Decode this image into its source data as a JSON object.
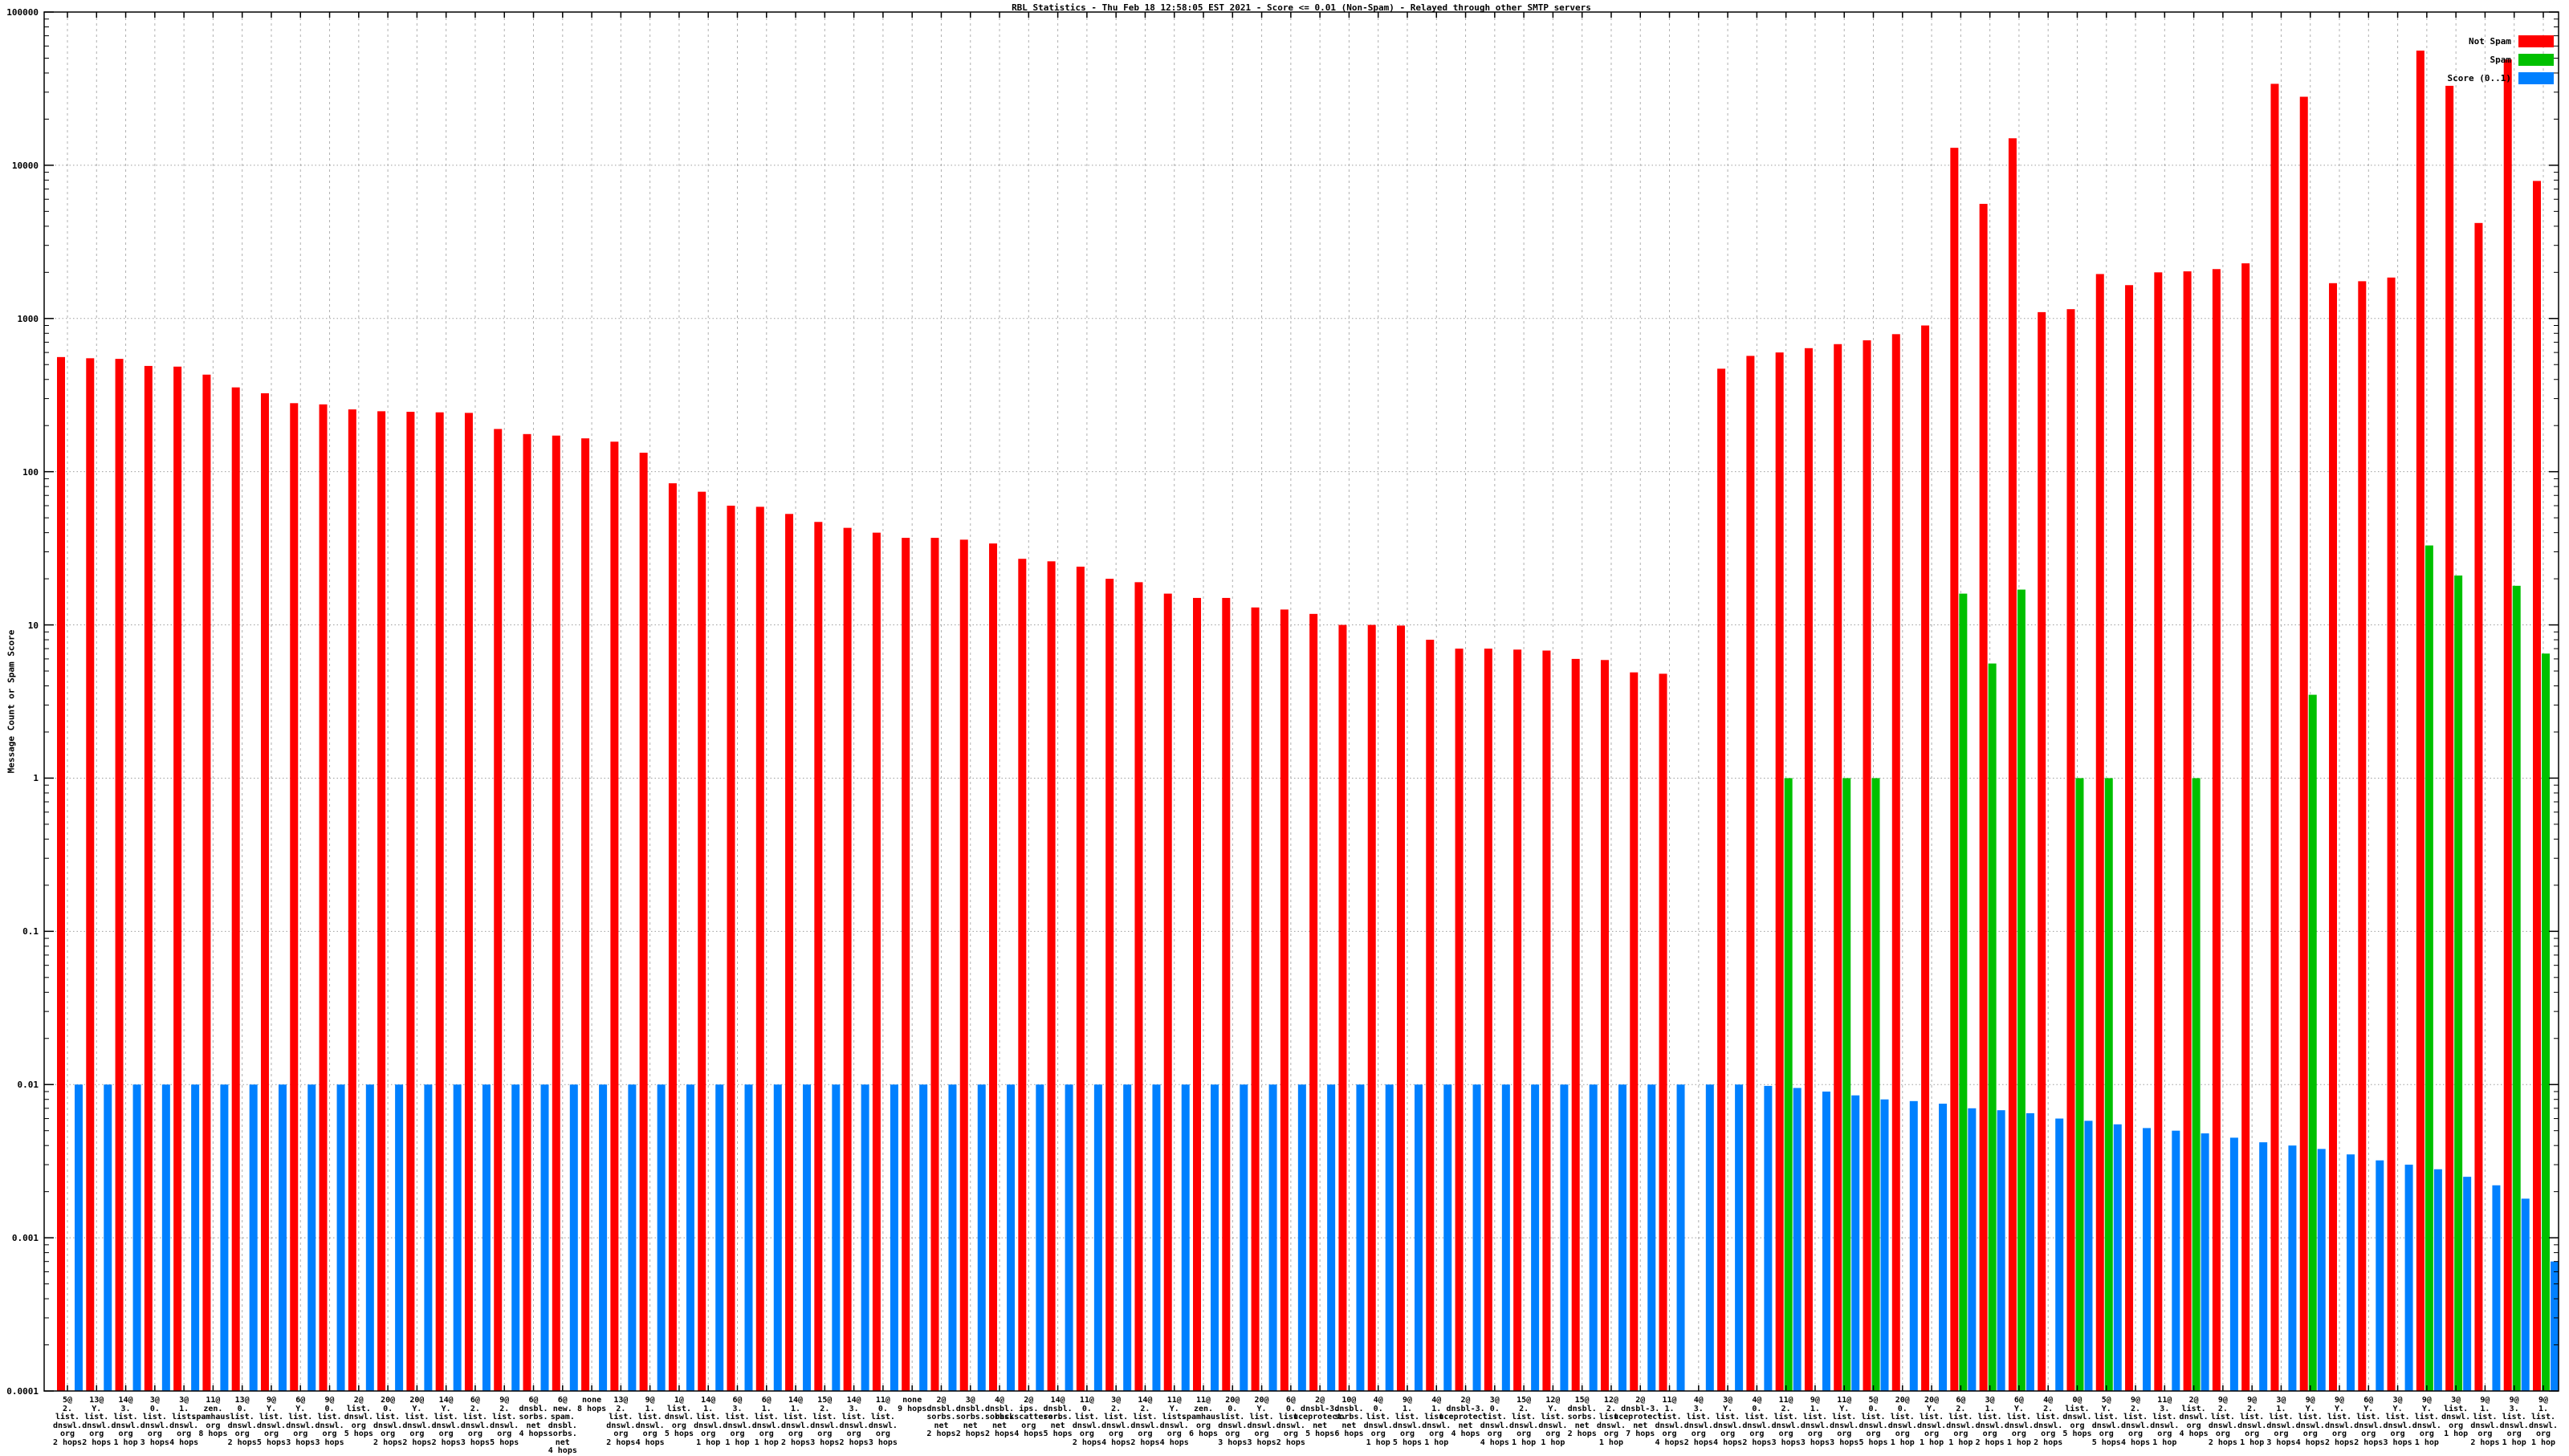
{
  "chart_data": {
    "type": "bar",
    "title": "RBL Statistics - Thu Feb 18 12:58:05 EST 2021 - Score <= 0.01 (Non-Spam) - Relayed through other SMTP servers",
    "ylabel": "Message Count or Spam Score",
    "xlabel": "",
    "y_scale": "log",
    "ylim": [
      0.0001,
      100000
    ],
    "grid": true,
    "legend_position": "top-right",
    "y_ticks": [
      "100000",
      "10000",
      "1000",
      "100",
      "10",
      "1",
      "0.1",
      "0.01",
      "0.001",
      "0.0001"
    ],
    "legend": [
      {
        "label": "Not Spam",
        "color": "#ff0000"
      },
      {
        "label": "Spam",
        "color": "#00c000"
      },
      {
        "label": "Score (0..1)",
        "color": "#0080ff"
      }
    ],
    "categories": [
      [
        "5@",
        "2.",
        "list.",
        "dnswl.",
        "org",
        "2 hops"
      ],
      [
        "13@",
        "Y.",
        "list.",
        "dnswl.",
        "org",
        "2 hops"
      ],
      [
        "14@",
        "3.",
        "list.",
        "dnswl.",
        "org",
        "1 hop"
      ],
      [
        "3@",
        "0.",
        "list.",
        "dnswl.",
        "org",
        "3 hops"
      ],
      [
        "3@",
        "1.",
        "list.",
        "dnswl.",
        "org",
        "4 hops"
      ],
      [
        "11@",
        "zen.",
        "spamhaus.",
        "org",
        "8 hops"
      ],
      [
        "13@",
        "0.",
        "list.",
        "dnswl.",
        "org",
        "2 hops"
      ],
      [
        "9@",
        "Y.",
        "list.",
        "dnswl.",
        "org",
        "5 hops"
      ],
      [
        "6@",
        "Y.",
        "list.",
        "dnswl.",
        "org",
        "3 hops"
      ],
      [
        "9@",
        "0.",
        "list.",
        "dnswl.",
        "org",
        "3 hops"
      ],
      [
        "2@",
        "list.",
        "dnswl.",
        "org",
        "5 hops"
      ],
      [
        "20@",
        "0.",
        "list.",
        "dnswl.",
        "org",
        "2 hops"
      ],
      [
        "20@",
        "Y.",
        "list.",
        "dnswl.",
        "org",
        "2 hops"
      ],
      [
        "14@",
        "Y.",
        "list.",
        "dnswl.",
        "org",
        "2 hops"
      ],
      [
        "6@",
        "2.",
        "list.",
        "dnswl.",
        "org",
        "3 hops"
      ],
      [
        "9@",
        "2.",
        "list.",
        "dnswl.",
        "org",
        "5 hops"
      ],
      [
        "6@",
        "dnsbl.",
        "sorbs.",
        "net",
        "4 hops"
      ],
      [
        "6@",
        "new.",
        "spam.",
        "dnsbl.",
        "sorbs.",
        "net",
        "4 hops"
      ],
      [
        "none",
        "8 hops"
      ],
      [
        "13@",
        "2.",
        "list.",
        "dnswl.",
        "org",
        "2 hops"
      ],
      [
        "9@",
        "1.",
        "list.",
        "dnswl.",
        "org",
        "4 hops"
      ],
      [
        "1@",
        "list.",
        "dnswl.",
        "org",
        "5 hops"
      ],
      [
        "14@",
        "1.",
        "list.",
        "dnswl.",
        "org",
        "1 hop"
      ],
      [
        "6@",
        "3.",
        "list.",
        "dnswl.",
        "org",
        "1 hop"
      ],
      [
        "6@",
        "1.",
        "list.",
        "dnswl.",
        "org",
        "1 hop"
      ],
      [
        "14@",
        "1.",
        "list.",
        "dnswl.",
        "org",
        "2 hops"
      ],
      [
        "15@",
        "2.",
        "list.",
        "dnswl.",
        "org",
        "3 hops"
      ],
      [
        "14@",
        "3.",
        "list.",
        "dnswl.",
        "org",
        "2 hops"
      ],
      [
        "11@",
        "0.",
        "list.",
        "dnswl.",
        "org",
        "3 hops"
      ],
      [
        "none",
        "9 hops"
      ],
      [
        "2@",
        "dnsbl.",
        "sorbs.",
        "net",
        "2 hops"
      ],
      [
        "3@",
        "dnsbl.",
        "sorbs.",
        "net",
        "2 hops"
      ],
      [
        "4@",
        "dnsbl.",
        "sorbs.",
        "net",
        "2 hops"
      ],
      [
        "2@",
        "ips.",
        "backscatterer.",
        "org",
        "4 hops"
      ],
      [
        "14@",
        "dnsbl.",
        "sorbs.",
        "net",
        "5 hops"
      ],
      [
        "11@",
        "0.",
        "list.",
        "dnswl.",
        "org",
        "2 hops"
      ],
      [
        "3@",
        "2.",
        "list.",
        "dnswl.",
        "org",
        "4 hops"
      ],
      [
        "14@",
        "2.",
        "list.",
        "dnswl.",
        "org",
        "2 hops"
      ],
      [
        "11@",
        "Y.",
        "list.",
        "dnswl.",
        "org",
        "4 hops"
      ],
      [
        "11@",
        "zen.",
        "spamhaus.",
        "org",
        "6 hops"
      ],
      [
        "20@",
        "0.",
        "list.",
        "dnswl.",
        "org",
        "3 hops"
      ],
      [
        "20@",
        "Y.",
        "list.",
        "dnswl.",
        "org",
        "3 hops"
      ],
      [
        "6@",
        "0.",
        "list.",
        "dnswl.",
        "org",
        "2 hops"
      ],
      [
        "2@",
        "dnsbl-3.",
        "uceprotect.",
        "net",
        "5 hops"
      ],
      [
        "10@",
        "dnsbl.",
        "sorbs.",
        "net",
        "6 hops"
      ],
      [
        "4@",
        "0.",
        "list.",
        "dnswl.",
        "org",
        "1 hop"
      ],
      [
        "9@",
        "1.",
        "list.",
        "dnswl.",
        "org",
        "5 hops"
      ],
      [
        "4@",
        "1.",
        "list.",
        "dnswl.",
        "org",
        "1 hop"
      ],
      [
        "2@",
        "dnsbl-3.",
        "uceprotect.",
        "net",
        "4 hops"
      ],
      [
        "3@",
        "0.",
        "list.",
        "dnswl.",
        "org",
        "4 hops"
      ],
      [
        "15@",
        "2.",
        "list.",
        "dnswl.",
        "org",
        "1 hop"
      ],
      [
        "12@",
        "Y.",
        "list.",
        "dnswl.",
        "org",
        "1 hop"
      ],
      [
        "15@",
        "dnsbl.",
        "sorbs.",
        "net",
        "2 hops"
      ],
      [
        "12@",
        "2.",
        "list.",
        "dnswl.",
        "org",
        "1 hop"
      ],
      [
        "2@",
        "dnsbl-3.",
        "uceprotect.",
        "net",
        "7 hops"
      ],
      [
        "11@",
        "1.",
        "list.",
        "dnswl.",
        "org",
        "4 hops"
      ],
      [
        "4@",
        "3.",
        "list.",
        "dnswl.",
        "org",
        "2 hops"
      ],
      [
        "3@",
        "Y.",
        "list.",
        "dnswl.",
        "org",
        "4 hops"
      ],
      [
        "4@",
        "0.",
        "list.",
        "dnswl.",
        "org",
        "2 hops"
      ],
      [
        "11@",
        "2.",
        "list.",
        "dnswl.",
        "org",
        "3 hops"
      ],
      [
        "9@",
        "1.",
        "list.",
        "dnswl.",
        "org",
        "3 hops"
      ],
      [
        "11@",
        "Y.",
        "list.",
        "dnswl.",
        "org",
        "3 hops"
      ],
      [
        "5@",
        "0.",
        "list.",
        "dnswl.",
        "org",
        "5 hops"
      ],
      [
        "20@",
        "0.",
        "list.",
        "dnswl.",
        "org",
        "1 hop"
      ],
      [
        "20@",
        "Y.",
        "list.",
        "dnswl.",
        "org",
        "1 hop"
      ],
      [
        "6@",
        "2.",
        "list.",
        "dnswl.",
        "org",
        "1 hop"
      ],
      [
        "3@",
        "1.",
        "list.",
        "dnswl.",
        "org",
        "2 hops"
      ],
      [
        "6@",
        "Y.",
        "list.",
        "dnswl.",
        "org",
        "1 hop"
      ],
      [
        "4@",
        "2.",
        "list.",
        "dnswl.",
        "org",
        "2 hops"
      ],
      [
        "0@",
        "list.",
        "dnswl.",
        "org",
        "5 hops"
      ],
      [
        "5@",
        "Y.",
        "list.",
        "dnswl.",
        "org",
        "5 hops"
      ],
      [
        "9@",
        "2.",
        "list.",
        "dnswl.",
        "org",
        "4 hops"
      ],
      [
        "11@",
        "3.",
        "list.",
        "dnswl.",
        "org",
        "1 hop"
      ],
      [
        "2@",
        "list.",
        "dnswl.",
        "org",
        "4 hops"
      ],
      [
        "9@",
        "2.",
        "list.",
        "dnswl.",
        "org",
        "2 hops"
      ],
      [
        "9@",
        "2.",
        "list.",
        "dnswl.",
        "org",
        "1 hop"
      ],
      [
        "3@",
        "1.",
        "list.",
        "dnswl.",
        "org",
        "3 hops"
      ],
      [
        "9@",
        "Y.",
        "list.",
        "dnswl.",
        "org",
        "4 hops"
      ],
      [
        "9@",
        "Y.",
        "list.",
        "dnswl.",
        "org",
        "2 hops"
      ],
      [
        "6@",
        "Y.",
        "list.",
        "dnswl.",
        "org",
        "2 hops"
      ],
      [
        "3@",
        "Y.",
        "list.",
        "dnswl.",
        "org",
        "3 hops"
      ],
      [
        "9@",
        "Y.",
        "list.",
        "dnswl.",
        "org",
        "1 hop"
      ],
      [
        "3@",
        "list.",
        "dnswl.",
        "org",
        "1 hop"
      ],
      [
        "9@",
        "1.",
        "list.",
        "dnswl.",
        "org",
        "2 hops"
      ],
      [
        "9@",
        "3.",
        "list.",
        "dnswl.",
        "org",
        "1 hop"
      ],
      [
        "9@",
        "1.",
        "list.",
        "dnswl.",
        "org",
        "1 hop"
      ]
    ],
    "series": [
      {
        "name": "Not Spam",
        "color": "#ff0000",
        "values": [
          560,
          550,
          545,
          490,
          485,
          430,
          355,
          325,
          280,
          275,
          255,
          248,
          246,
          244,
          242,
          190,
          176,
          172,
          165,
          157,
          133,
          84,
          74,
          60,
          59,
          53,
          47,
          43,
          40,
          37,
          37,
          36,
          34,
          27,
          26,
          24,
          20,
          19,
          16,
          15,
          15,
          13,
          12.6,
          11.8,
          10,
          10,
          9.9,
          8,
          7,
          7,
          6.9,
          6.8,
          6,
          5.9,
          4.9,
          4.8,
          null,
          470,
          570,
          600,
          640,
          680,
          720,
          790,
          900,
          13000,
          5600,
          15000,
          1100,
          1150,
          1950,
          1650,
          2000,
          2030,
          2100,
          2290,
          34000,
          28000,
          1700,
          1750,
          1850,
          56000,
          33000,
          4200,
          49000,
          7900
        ]
      },
      {
        "name": "Spam",
        "color": "#00c000",
        "values": [
          null,
          null,
          null,
          null,
          null,
          null,
          null,
          null,
          null,
          null,
          null,
          null,
          null,
          null,
          null,
          null,
          null,
          null,
          null,
          null,
          null,
          null,
          null,
          null,
          null,
          null,
          null,
          null,
          null,
          null,
          null,
          null,
          null,
          null,
          null,
          null,
          null,
          null,
          null,
          null,
          null,
          null,
          null,
          null,
          null,
          null,
          null,
          null,
          null,
          null,
          null,
          null,
          null,
          null,
          null,
          null,
          null,
          null,
          null,
          1,
          null,
          1,
          1,
          null,
          null,
          16,
          5.6,
          17,
          null,
          1,
          1,
          null,
          null,
          1,
          null,
          null,
          null,
          3.5,
          null,
          null,
          null,
          33,
          21,
          null,
          18,
          6.5
        ]
      },
      {
        "name": "Score (0..1)",
        "color": "#0080ff",
        "values": [
          0.01,
          0.01,
          0.01,
          0.01,
          0.01,
          0.01,
          0.01,
          0.01,
          0.01,
          0.01,
          0.01,
          0.01,
          0.01,
          0.01,
          0.01,
          0.01,
          0.01,
          0.01,
          0.01,
          0.01,
          0.01,
          0.01,
          0.01,
          0.01,
          0.01,
          0.01,
          0.01,
          0.01,
          0.01,
          0.01,
          0.01,
          0.01,
          0.01,
          0.01,
          0.01,
          0.01,
          0.01,
          0.01,
          0.01,
          0.01,
          0.01,
          0.01,
          0.01,
          0.01,
          0.01,
          0.01,
          0.01,
          0.01,
          0.01,
          0.01,
          0.01,
          0.01,
          0.01,
          0.01,
          0.01,
          0.01,
          0.01,
          0.01,
          0.0098,
          0.0095,
          0.009,
          0.0085,
          0.008,
          0.0078,
          0.0075,
          0.007,
          0.0068,
          0.0065,
          0.006,
          0.0058,
          0.0055,
          0.0052,
          0.005,
          0.0048,
          0.0045,
          0.0042,
          0.004,
          0.0038,
          0.0035,
          0.0032,
          0.003,
          0.0028,
          0.0025,
          0.0022,
          0.0018,
          0.0007
        ]
      }
    ]
  }
}
